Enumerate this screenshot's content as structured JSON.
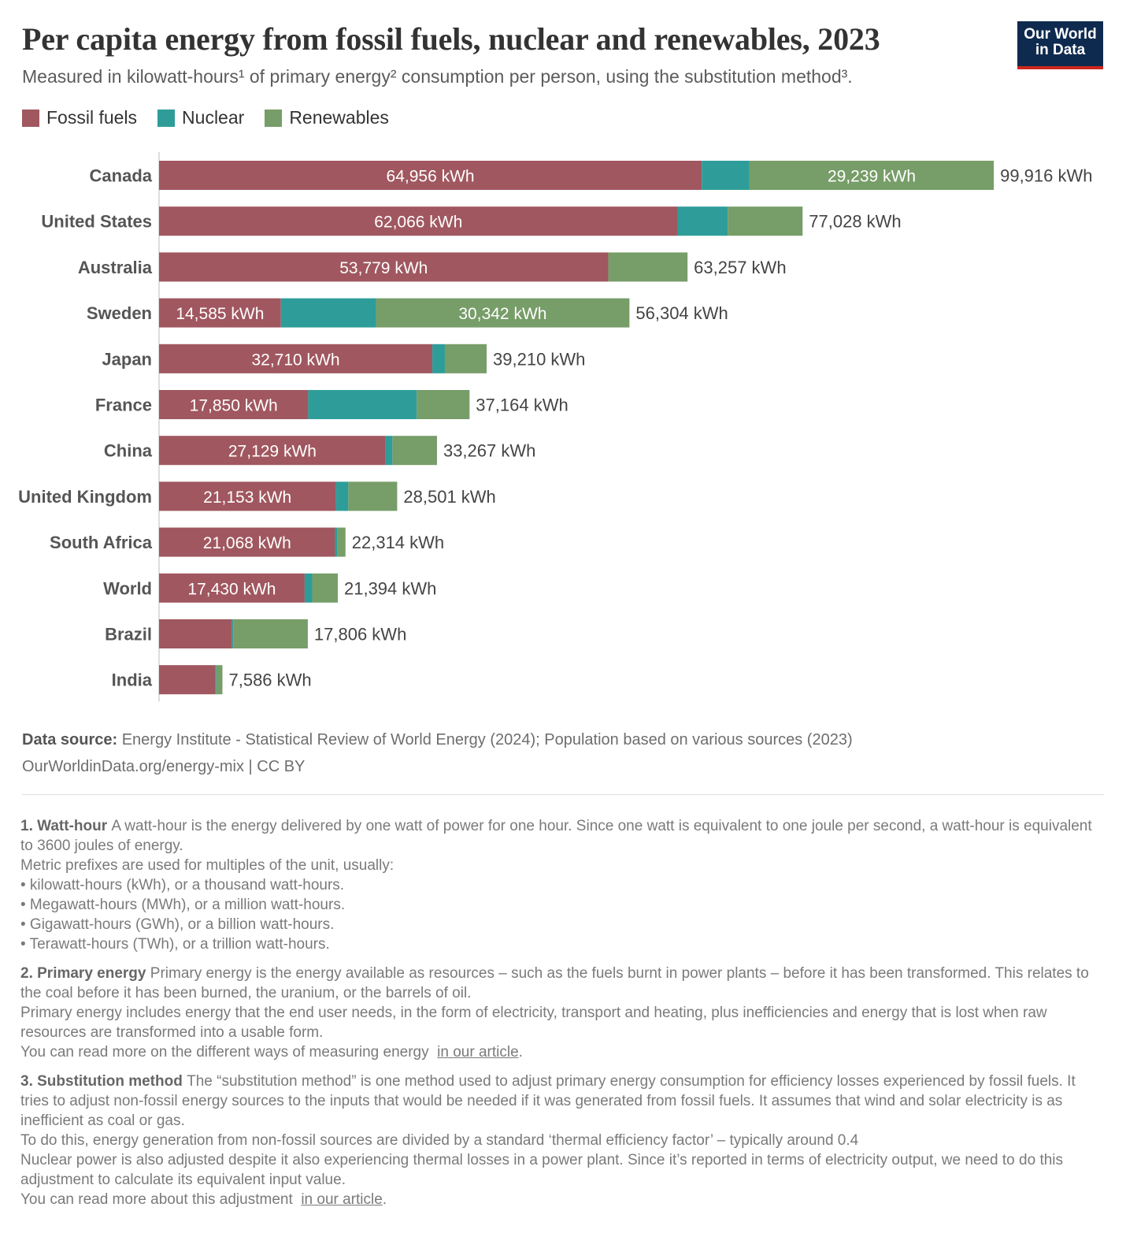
{
  "title": "Per capita energy from fossil fuels, nuclear and renewables, 2023",
  "subtitle": "Measured in kilowatt-hours¹ of primary energy² consumption per person, using the substitution method³.",
  "logo": {
    "line1": "Our World",
    "line2": "in Data"
  },
  "legend": [
    {
      "label": "Fossil fuels",
      "color": "#a0575f"
    },
    {
      "label": "Nuclear",
      "color": "#2e9d9a"
    },
    {
      "label": "Renewables",
      "color": "#779d68"
    }
  ],
  "chart_data": {
    "type": "bar",
    "orientation": "horizontal",
    "stacked": true,
    "unit": "kWh",
    "xlim": [
      0,
      100000
    ],
    "categories": [
      "Canada",
      "United States",
      "Australia",
      "Sweden",
      "Japan",
      "France",
      "China",
      "United Kingdom",
      "South Africa",
      "World",
      "Brazil",
      "India"
    ],
    "series": [
      {
        "name": "Fossil fuels",
        "color": "#a0575f",
        "values": [
          64956,
          62066,
          53779,
          14585,
          32710,
          17850,
          27129,
          21153,
          21068,
          17430,
          8740,
          6750
        ],
        "labels": [
          "64,956 kWh",
          "62,066 kWh",
          "53,779 kWh",
          "14,585 kWh",
          "32,710 kWh",
          "17,850 kWh",
          "27,129 kWh",
          "21,153 kWh",
          "21,068 kWh",
          "17,430 kWh",
          "",
          ""
        ]
      },
      {
        "name": "Nuclear",
        "color": "#2e9d9a",
        "values": [
          5721,
          6000,
          0,
          11377,
          1500,
          13000,
          800,
          1500,
          300,
          900,
          150,
          110
        ],
        "labels": [
          "",
          "",
          "",
          "",
          "",
          "",
          "",
          "",
          "",
          "",
          "",
          ""
        ]
      },
      {
        "name": "Renewables",
        "color": "#779d68",
        "values": [
          29239,
          8962,
          9478,
          30342,
          5000,
          6314,
          5338,
          5848,
          946,
          3064,
          8916,
          726
        ],
        "labels": [
          "29,239 kWh",
          "",
          "",
          "30,342 kWh",
          "",
          "",
          "",
          "",
          "",
          "",
          "",
          ""
        ]
      }
    ],
    "totals": [
      99916,
      77028,
      63257,
      56304,
      39210,
      37164,
      33267,
      28501,
      22314,
      21394,
      17806,
      7586
    ],
    "total_labels": [
      "99,916 kWh",
      "77,028 kWh",
      "63,257 kWh",
      "56,304 kWh",
      "39,210 kWh",
      "37,164 kWh",
      "33,267 kWh",
      "28,501 kWh",
      "22,314 kWh",
      "21,394 kWh",
      "17,806 kWh",
      "7,586 kWh"
    ]
  },
  "source": {
    "label": "Data source:",
    "text": "Energy Institute - Statistical Review of World Energy (2024); Population based on various sources (2023)",
    "url": "OurWorldinData.org/energy-mix",
    "license": "| CC BY"
  },
  "notes": {
    "n1": {
      "title": "1. Watt-hour",
      "lines": [
        "A watt-hour is the energy delivered by one watt of power for one hour. Since one watt is equivalent to one joule per second, a watt-hour is equivalent to 3600 joules of energy.",
        "Metric prefixes are used for multiples of the unit, usually:",
        "• kilowatt-hours (kWh), or a thousand watt-hours.",
        "• Megawatt-hours (MWh), or a million watt-hours.",
        "• Gigawatt-hours (GWh), or a billion watt-hours.",
        "• Terawatt-hours (TWh), or a trillion watt-hours."
      ]
    },
    "n2": {
      "title": "2. Primary energy",
      "lines": [
        "Primary energy is the energy available as resources – such as the fuels burnt in power plants – before it has been transformed. This relates to the coal before it has been burned, the uranium, or the barrels of oil.",
        "Primary energy includes energy that the end user needs, in the form of electricity, transport and heating, plus inefficiencies and energy that is lost when raw resources are transformed into a usable form."
      ],
      "read_more": "You can read more on the different ways of measuring energy",
      "link": "in our article"
    },
    "n3": {
      "title": "3. Substitution method",
      "lines": [
        "The “substitution method” is one method used to adjust primary energy consumption for efficiency losses experienced by fossil fuels. It tries to adjust non-fossil energy sources to the inputs that would be needed if it was generated from fossil fuels. It assumes that wind and solar electricity is as inefficient as coal or gas.",
        "To do this, energy generation from non-fossil sources are divided by a standard ‘thermal efficiency factor’ – typically around 0.4",
        "Nuclear power is also adjusted despite it also experiencing thermal losses in a power plant. Since it’s reported in terms of electricity output, we need to do this adjustment to calculate its equivalent input value."
      ],
      "read_more": "You can read more about this adjustment",
      "link": "in our article"
    }
  }
}
